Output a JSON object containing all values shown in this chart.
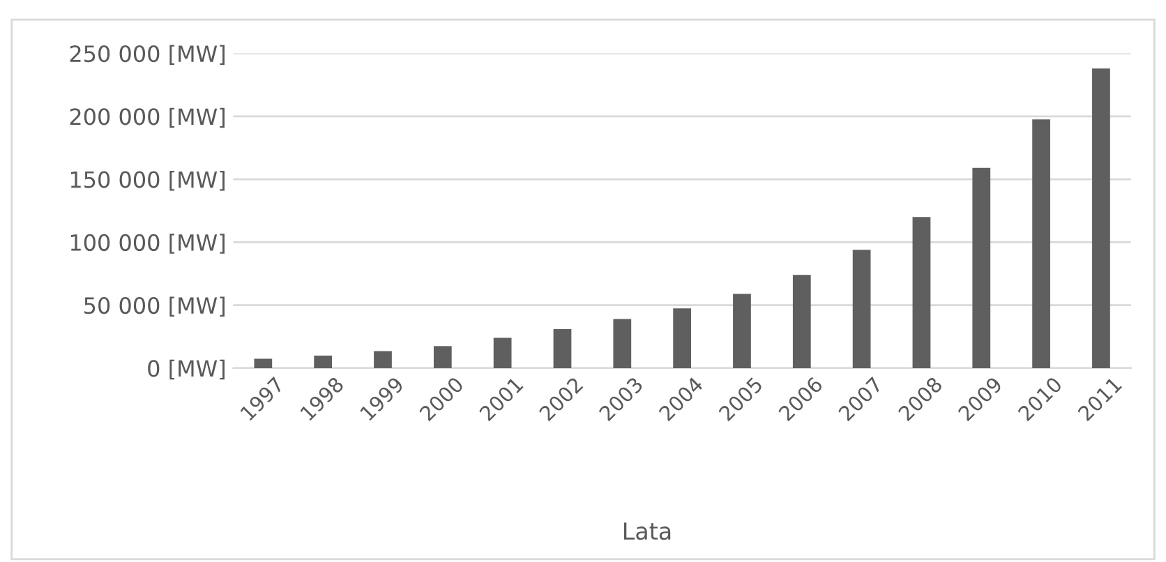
{
  "chart_data": {
    "type": "bar",
    "xlabel": "Lata",
    "categories": [
      "1997",
      "1998",
      "1999",
      "2000",
      "2001",
      "2002",
      "2003",
      "2004",
      "2005",
      "2006",
      "2007",
      "2008",
      "2009",
      "2010",
      "2011"
    ],
    "values": [
      7500,
      10000,
      13500,
      17500,
      24000,
      31000,
      39000,
      47500,
      59000,
      74000,
      94000,
      120000,
      159000,
      197500,
      238000
    ],
    "color": "#5f5f5f",
    "ylim": [
      0,
      250000
    ],
    "yticks": [
      {
        "value": 0,
        "label": "0 [MW]"
      },
      {
        "value": 50000,
        "label": "50 000 [MW]"
      },
      {
        "value": 100000,
        "label": "100 000 [MW]"
      },
      {
        "value": 150000,
        "label": "150 000 [MW]"
      },
      {
        "value": 200000,
        "label": "200 000 [MW]"
      },
      {
        "value": 250000,
        "label": "250 000 [MW]"
      }
    ],
    "grid": "y"
  }
}
